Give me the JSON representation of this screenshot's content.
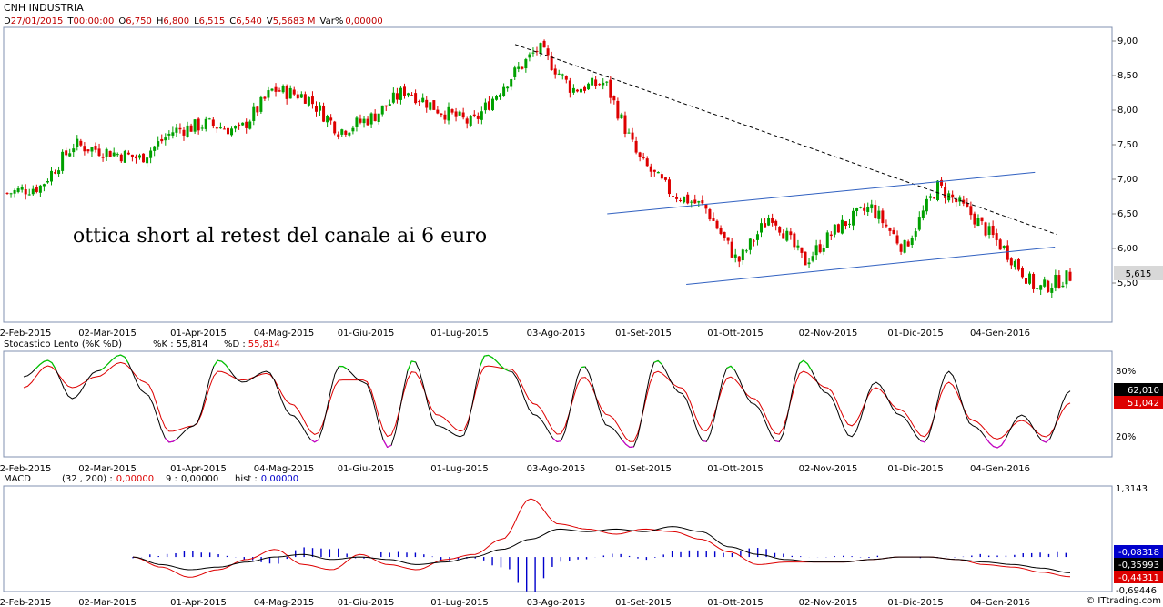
{
  "header": {
    "title": "CNH INDUSTRIA",
    "d_label": "D",
    "d_value": "27/01/2015",
    "t_label": "T",
    "t_value": "00:00:00",
    "o_label": "O",
    "o_value": "6,750",
    "h_label": "H",
    "h_value": "6,800",
    "l_label": "L",
    "l_value": "6,515",
    "c_label": "C",
    "c_value": "6,540",
    "v_label": "V",
    "v_value": "5,5683 M",
    "var_label": "Var%",
    "var_value": "0,00000"
  },
  "colors": {
    "up": "#00a000",
    "down": "#dd0000",
    "channel": "#3060c0",
    "k_line": "#000000",
    "d_line": "#dd0000",
    "hist": "#0000cc",
    "overbought": "#00cc00",
    "oversold": "#cc00cc"
  },
  "chart_data": [
    {
      "type": "candlestick",
      "annotation": "ottica short al retest del canale ai 6 euro",
      "x_ticks": [
        "2-Feb-2015",
        "02-Mar-2015",
        "01-Apr-2015",
        "04-Mag-2015",
        "01-Giu-2015",
        "01-Lug-2015",
        "03-Ago-2015",
        "01-Set-2015",
        "01-Ott-2015",
        "02-Nov-2015",
        "01-Dic-2015",
        "04-Gen-2016"
      ],
      "y_ticks": [
        "9,00",
        "8,50",
        "8,00",
        "7,50",
        "7,00",
        "6,50",
        "6,00",
        "5,50"
      ],
      "ylim": [
        5.0,
        9.1
      ],
      "last_price_label": "5,615",
      "last_price": 5.615,
      "approx_closes": [
        6.8,
        6.9,
        7.5,
        7.4,
        7.3,
        7.7,
        7.8,
        7.7,
        8.3,
        8.2,
        7.7,
        7.9,
        8.3,
        8.0,
        7.8,
        8.4,
        8.9,
        8.3,
        8.4,
        7.3,
        6.8,
        6.6,
        5.8,
        6.5,
        5.8,
        6.3,
        6.6,
        6.0,
        6.9,
        6.5,
        6.0,
        5.4,
        5.6
      ],
      "trendlines": [
        {
          "name": "dashed resistance",
          "points": [
            [
              "2015-07-20",
              8.95
            ],
            [
              "2016-01-27",
              6.2
            ]
          ]
        },
        {
          "name": "channel upper",
          "points": [
            [
              "2015-08-20",
              6.5
            ],
            [
              "2016-01-18",
              7.1
            ]
          ]
        },
        {
          "name": "channel lower",
          "points": [
            [
              "2015-09-15",
              5.48
            ],
            [
              "2016-01-26",
              6.02
            ]
          ]
        }
      ]
    },
    {
      "type": "line",
      "title": "Stocastico Lento (%K %D)",
      "k_label": "%K :",
      "k_value": "55,814",
      "d_label": "%D :",
      "d_value": "55,814",
      "y_ticks": [
        "80%",
        "20%"
      ],
      "levels": [
        80,
        20
      ],
      "ylim": [
        0,
        100
      ],
      "last_labels": [
        "62,010",
        "51,042"
      ],
      "series": [
        {
          "name": "%K",
          "values": [
            75,
            90,
            55,
            80,
            95,
            60,
            15,
            30,
            90,
            70,
            80,
            40,
            15,
            85,
            70,
            10,
            90,
            30,
            20,
            95,
            80,
            40,
            15,
            85,
            30,
            10,
            90,
            60,
            15,
            85,
            50,
            15,
            90,
            60,
            20,
            70,
            40,
            15,
            80,
            30,
            10,
            40,
            15,
            62
          ]
        },
        {
          "name": "%D",
          "values": [
            65,
            85,
            65,
            75,
            88,
            70,
            25,
            30,
            80,
            72,
            78,
            50,
            22,
            72,
            72,
            20,
            80,
            40,
            25,
            85,
            82,
            50,
            22,
            75,
            40,
            15,
            80,
            65,
            25,
            75,
            55,
            22,
            80,
            65,
            30,
            65,
            45,
            20,
            70,
            35,
            18,
            35,
            20,
            51
          ]
        }
      ]
    },
    {
      "type": "line",
      "title": "MACD",
      "params": "(32 , 200) :",
      "macd_value": "0,00000",
      "signal_label": "9 :",
      "signal_value": "0,00000",
      "hist_label": "hist :",
      "hist_value": "0,00000",
      "y_ticks": [
        "1,3143",
        "-0,69446"
      ],
      "ylim": [
        -0.69446,
        1.3143
      ],
      "last_labels": [
        "-0,08318",
        "-0,35993",
        "-0,44311"
      ],
      "series": [
        {
          "name": "MACD",
          "values": [
            -0.05,
            -0.2,
            -0.3,
            -0.25,
            -0.15,
            -0.05,
            0.0,
            -0.1,
            -0.05,
            -0.1,
            -0.2,
            -0.15,
            -0.05,
            0.1,
            0.3,
            0.5,
            0.45,
            0.5,
            0.45,
            0.55,
            0.45,
            0.15,
            0.0,
            -0.1,
            -0.15,
            -0.15,
            -0.1,
            -0.05,
            -0.05,
            -0.1,
            -0.15,
            -0.2,
            -0.27,
            -0.36
          ]
        },
        {
          "name": "Signal",
          "values": [
            -0.05,
            -0.25,
            -0.45,
            -0.3,
            -0.1,
            0.1,
            -0.2,
            -0.3,
            0.0,
            -0.2,
            -0.3,
            -0.1,
            0.0,
            0.3,
            1.1,
            0.6,
            0.5,
            0.4,
            0.5,
            0.45,
            0.3,
            0.05,
            -0.2,
            -0.15,
            -0.15,
            -0.15,
            -0.1,
            -0.05,
            -0.05,
            -0.1,
            -0.2,
            -0.25,
            -0.35,
            -0.44
          ]
        }
      ]
    }
  ],
  "footer": {
    "watermark": "© ITtrading.com"
  }
}
